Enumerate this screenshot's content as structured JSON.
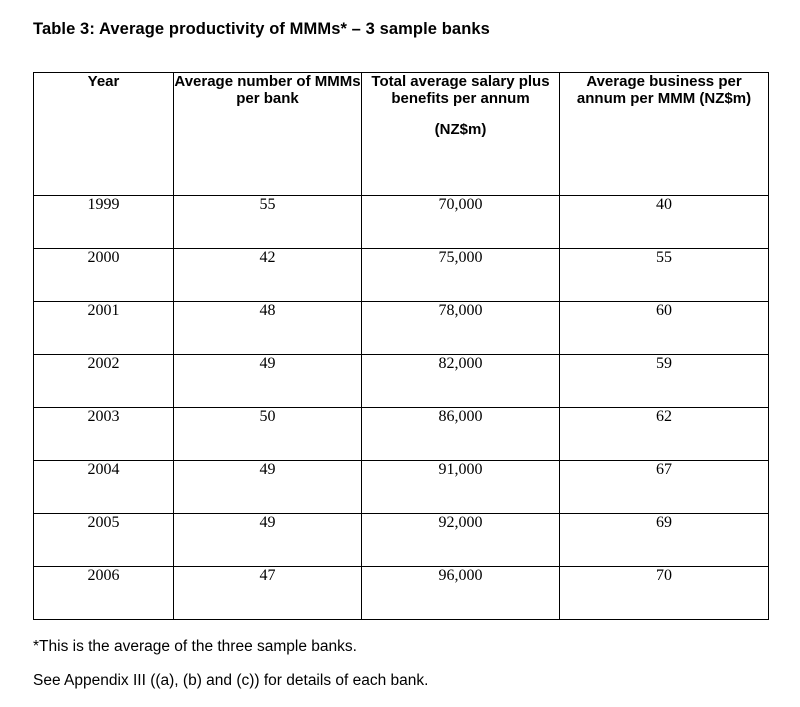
{
  "title": "Table 3: Average productivity of MMMs* – 3 sample banks",
  "table": {
    "headers": {
      "year": "Year",
      "mmms": "Average number of MMMs per bank",
      "salary": "Total average salary plus benefits per annum",
      "salary_unit": "(NZ$m)",
      "business": "Average business per annum per MMM (NZ$m)"
    },
    "rows": [
      {
        "year": "1999",
        "mmms": "55",
        "salary": "70,000",
        "business": "40"
      },
      {
        "year": "2000",
        "mmms": "42",
        "salary": "75,000",
        "business": "55"
      },
      {
        "year": "2001",
        "mmms": "48",
        "salary": "78,000",
        "business": "60"
      },
      {
        "year": "2002",
        "mmms": "49",
        "salary": "82,000",
        "business": "59"
      },
      {
        "year": "2003",
        "mmms": "50",
        "salary": "86,000",
        "business": "62"
      },
      {
        "year": "2004",
        "mmms": "49",
        "salary": "91,000",
        "business": "67"
      },
      {
        "year": "2005",
        "mmms": "49",
        "salary": "92,000",
        "business": "69"
      },
      {
        "year": "2006",
        "mmms": "47",
        "salary": "96,000",
        "business": "70"
      }
    ]
  },
  "notes": {
    "footnote": "*This is the average of the three sample banks.",
    "appendix": "See Appendix III ((a), (b) and (c)) for details of each bank."
  }
}
